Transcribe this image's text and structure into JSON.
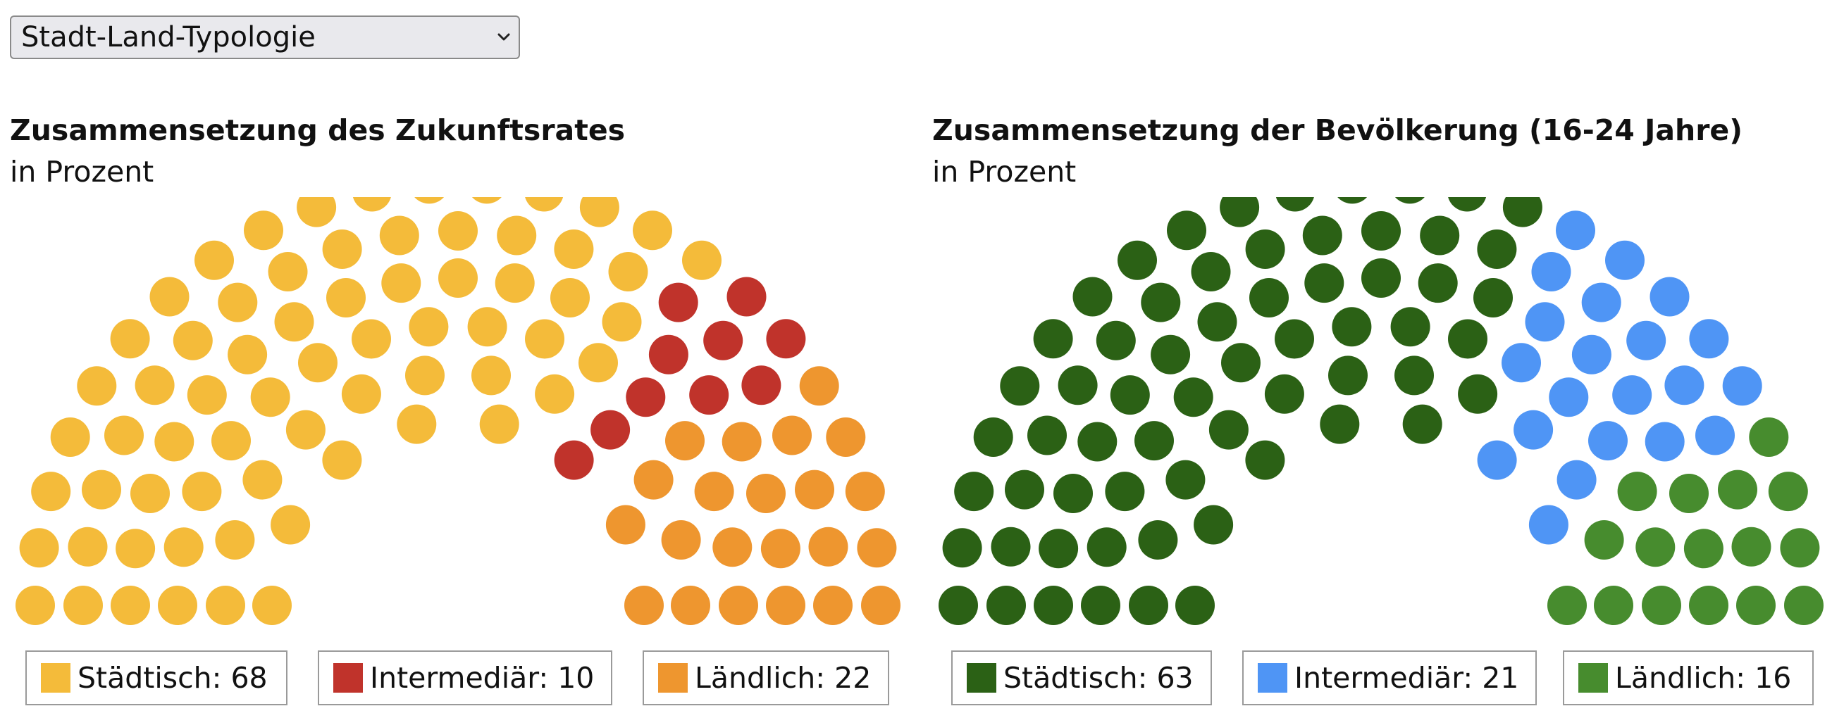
{
  "dropdown": {
    "selected_label": "Stadt-Land-Typologie",
    "icon": "chevron-down-icon"
  },
  "chart_data": [
    {
      "type": "parliament",
      "title": "Zusammensetzung des Zukunftsrates",
      "subtitle": "in Prozent",
      "total": 100,
      "series": [
        {
          "name": "Städtisch",
          "value": 68,
          "color": "#f4bb3a",
          "label": "Städtisch: 68"
        },
        {
          "name": "Intermediär",
          "value": 10,
          "color": "#c0332b",
          "label": "Intermediär: 10"
        },
        {
          "name": "Ländlich",
          "value": 22,
          "color": "#ee962f",
          "label": "Ländlich: 22"
        }
      ]
    },
    {
      "type": "parliament",
      "title": "Zusammensetzung der Bevölkerung (16-24 Jahre)",
      "subtitle": "in Prozent",
      "total": 100,
      "series": [
        {
          "name": "Städtisch",
          "value": 63,
          "color": "#2b6115",
          "label": "Städtisch: 63"
        },
        {
          "name": "Intermediär",
          "value": 21,
          "color": "#4f95f5",
          "label": "Intermediär: 21"
        },
        {
          "name": "Ländlich",
          "value": 16,
          "color": "#478c2e",
          "label": "Ländlich: 16"
        }
      ]
    }
  ]
}
